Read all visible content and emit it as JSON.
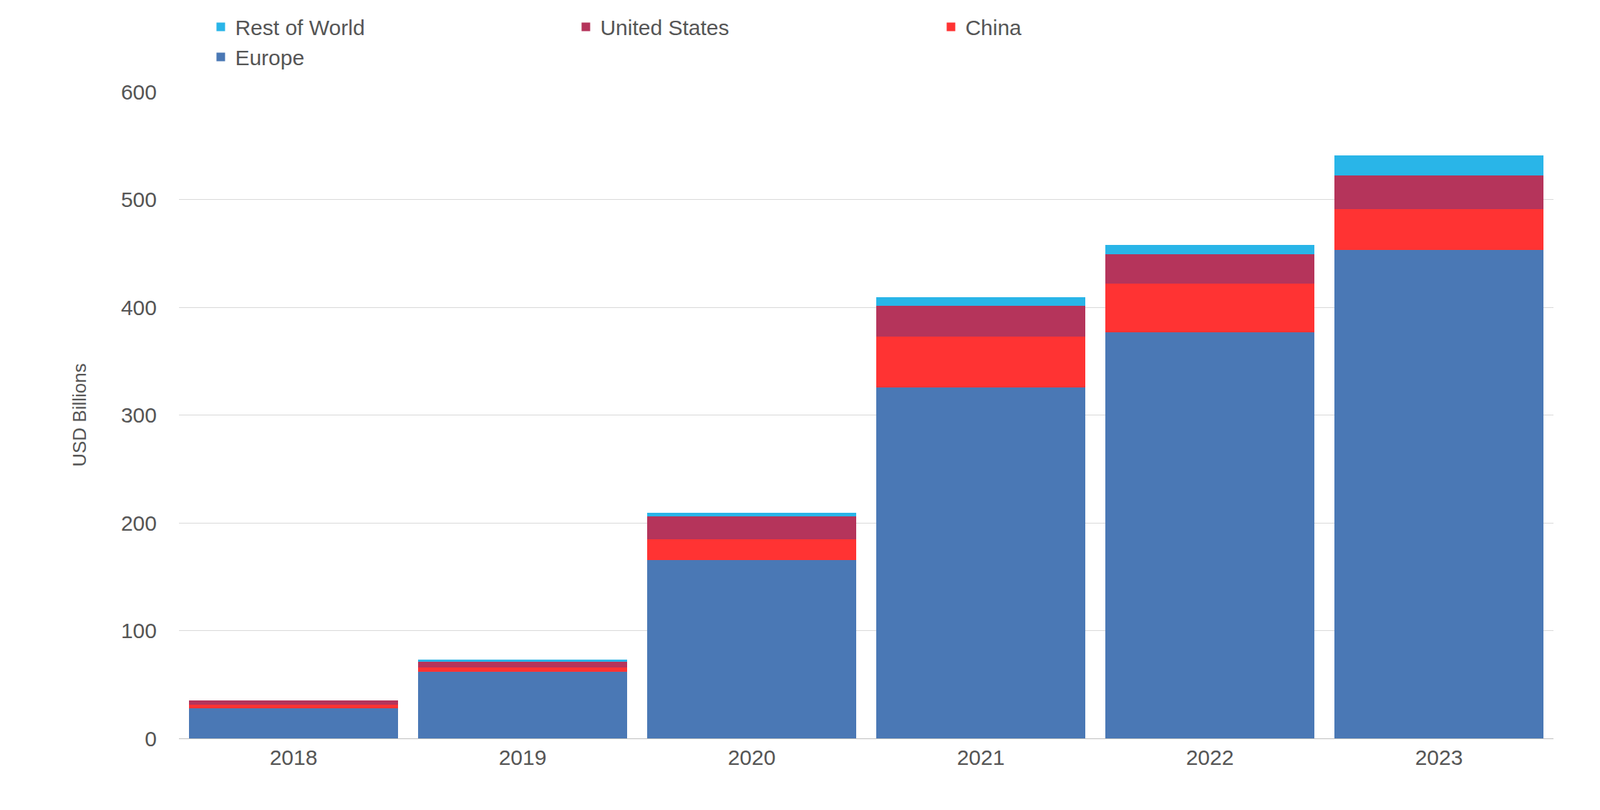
{
  "chart_data": {
    "type": "bar",
    "stacked": true,
    "y_label": "USD Billions",
    "categories": [
      "2018",
      "2019",
      "2020",
      "2021",
      "2022",
      "2023"
    ],
    "series": [
      {
        "name": "Europe",
        "color": "#4a78b5",
        "values": [
          28,
          62,
          165.5,
          325.5,
          377,
          453
        ]
      },
      {
        "name": "China",
        "color": "#ff3333",
        "values": [
          3,
          4,
          19.5,
          47,
          45,
          38
        ]
      },
      {
        "name": "United States",
        "color": "#b5345b",
        "values": [
          4,
          5,
          21,
          29,
          27,
          31
        ]
      },
      {
        "name": "Rest of World",
        "color": "#29b5e8",
        "values": [
          0.5,
          2,
          3,
          7.5,
          8.5,
          19
        ]
      }
    ],
    "ylim": [
      0,
      600
    ],
    "yticks": [
      0,
      100,
      200,
      300,
      400,
      500,
      600
    ],
    "grid": true,
    "legend": "top"
  }
}
